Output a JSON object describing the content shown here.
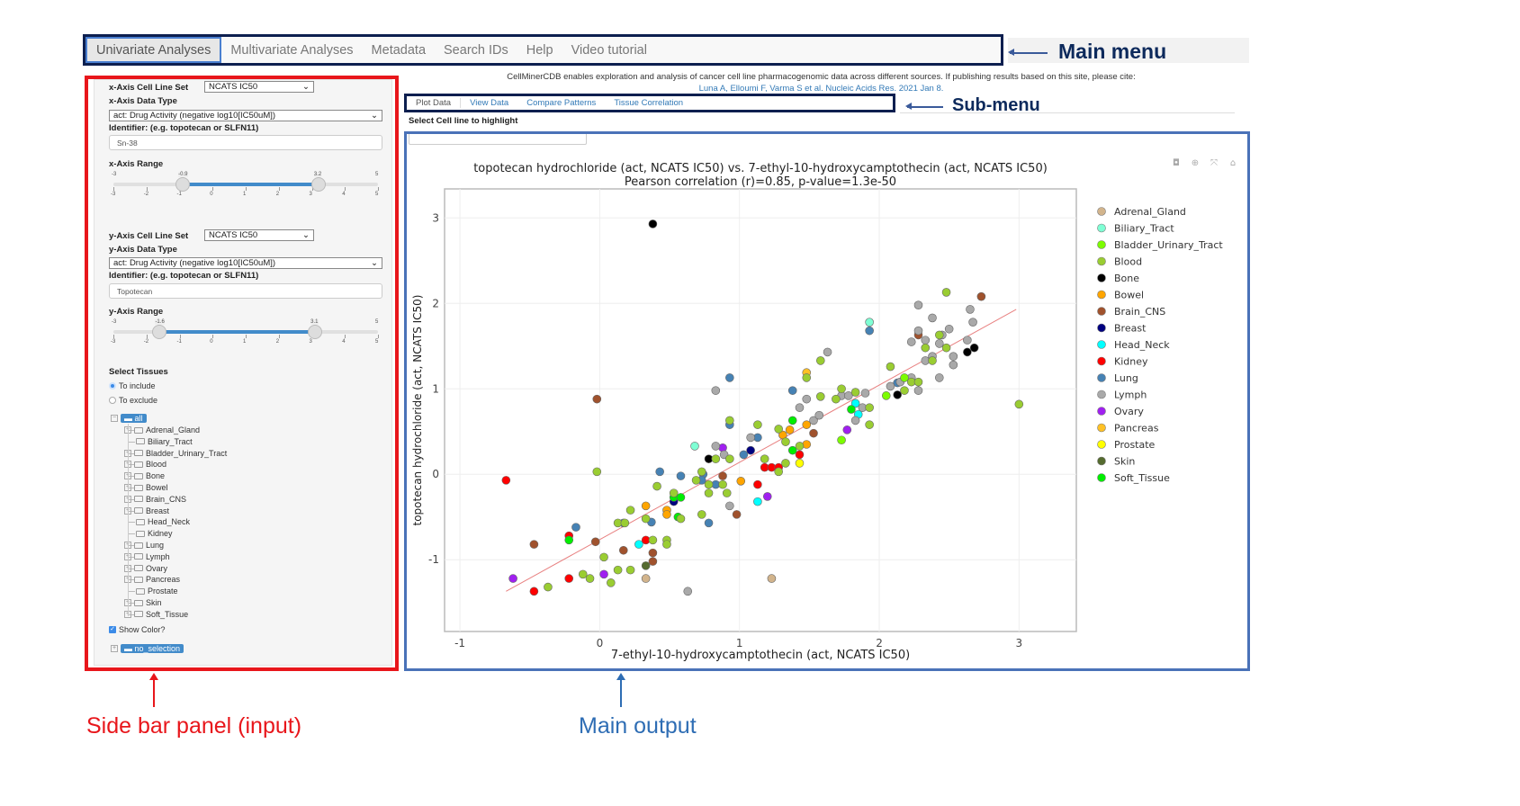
{
  "main_menu": {
    "tabs": [
      "Univariate Analyses",
      "Multivariate Analyses",
      "Metadata",
      "Search IDs",
      "Help",
      "Video tutorial"
    ],
    "active": "Univariate Analyses"
  },
  "annotations": {
    "main_menu": "Main menu",
    "sub_menu": "Sub-menu",
    "sidebar": "Side bar panel (input)",
    "main_output": "Main output",
    "colors": {
      "main_menu": "#0d1f4f",
      "sidebar": "#e8161b",
      "main_output": "#4a72b8",
      "sidebar_label": "#e8161b",
      "output_label": "#2e6db4"
    }
  },
  "intro": {
    "text": "CellMinerCDB enables exploration and analysis of cancer cell line pharmacogenomic data across different sources. If publishing results based on this site, please cite:",
    "citation": "Luna A, Elloumi F, Varma S et al. Nucleic Acids Res. 2021 Jan 8."
  },
  "sidebar": {
    "x_cell_line_set_label": "x-Axis Cell Line Set",
    "x_cell_line_set": "NCATS IC50",
    "x_data_type_label": "x-Axis Data Type",
    "x_data_type": "act: Drug Activity (negative log10[IC50uM])",
    "x_identifier_label": "Identifier: (e.g. topotecan or SLFN11)",
    "x_identifier": "Sn-38",
    "x_range_label": "x-Axis Range",
    "x_range": {
      "min": -3,
      "max": 5,
      "low": -0.9,
      "high": 3.2,
      "ticks": [
        "-3",
        "-2",
        "-1",
        "0",
        "1",
        "2",
        "3",
        "4",
        "5"
      ],
      "min_label": "-3",
      "max_label": "5",
      "low_label": "-0.9",
      "high_label": "3.2"
    },
    "y_cell_line_set_label": "y-Axis Cell Line Set",
    "y_cell_line_set": "NCATS IC50",
    "y_data_type_label": "y-Axis Data Type",
    "y_data_type": "act: Drug Activity (negative log10[IC50uM])",
    "y_identifier_label": "Identifier: (e.g. topotecan or SLFN11)",
    "y_identifier": "Topotecan",
    "y_range_label": "y-Axis Range",
    "y_range": {
      "min": -3,
      "max": 5,
      "low": -1.6,
      "high": 3.1,
      "ticks": [
        "-3",
        "-2",
        "-1",
        "0",
        "1",
        "2",
        "3",
        "4",
        "5"
      ],
      "min_label": "-3",
      "max_label": "5",
      "low_label": "-1.6",
      "high_label": "3.1"
    },
    "select_tissues_label": "Select Tissues",
    "include_label": "To include",
    "exclude_label": "To exclude",
    "include_selected": true,
    "tree_root": "all",
    "tree_items": [
      {
        "label": "Adrenal_Gland",
        "expandable": true
      },
      {
        "label": "Biliary_Tract",
        "expandable": false
      },
      {
        "label": "Bladder_Urinary_Tract",
        "expandable": true
      },
      {
        "label": "Blood",
        "expandable": true
      },
      {
        "label": "Bone",
        "expandable": true
      },
      {
        "label": "Bowel",
        "expandable": true
      },
      {
        "label": "Brain_CNS",
        "expandable": true
      },
      {
        "label": "Breast",
        "expandable": true
      },
      {
        "label": "Head_Neck",
        "expandable": false
      },
      {
        "label": "Kidney",
        "expandable": false
      },
      {
        "label": "Lung",
        "expandable": true
      },
      {
        "label": "Lymph",
        "expandable": true
      },
      {
        "label": "Ovary",
        "expandable": true
      },
      {
        "label": "Pancreas",
        "expandable": true
      },
      {
        "label": "Prostate",
        "expandable": false
      },
      {
        "label": "Skin",
        "expandable": true
      },
      {
        "label": "Soft_Tissue",
        "expandable": true
      }
    ],
    "show_color_label": "Show Color?",
    "show_color": true,
    "no_selection": "no_selection"
  },
  "sub_menu": {
    "tabs": [
      "Plot Data",
      "View Data",
      "Compare Patterns",
      "Tissue Correlation"
    ],
    "active": "Plot Data",
    "highlight_label": "Select Cell line to highlight",
    "highlight_value": ""
  },
  "chart_data": {
    "type": "scatter",
    "title": "topotecan hydrochloride (act, NCATS IC50) vs. 7-ethyl-10-hydroxycamptothecin (act, NCATS IC50)",
    "subtitle": "Pearson correlation (r)=0.85, p-value=1.3e-50",
    "xlabel": "7-ethyl-10-hydroxycamptothecin (act, NCATS IC50)",
    "ylabel": "topotecan hydrochloride (act, NCATS IC50)",
    "xlim": [
      -1.11,
      3.41
    ],
    "ylim": [
      -1.84,
      3.34
    ],
    "xticks": [
      "-1",
      "0",
      "1",
      "2",
      "3"
    ],
    "yticks": [
      "-1",
      "0",
      "1",
      "2",
      "3"
    ],
    "grid": true,
    "legend_position": "right",
    "trendline": {
      "color": "#e88080",
      "from": [
        -0.67,
        -1.37
      ],
      "to": [
        2.98,
        1.93
      ]
    },
    "legend": [
      {
        "name": "Adrenal_Gland",
        "color": "#d2b48c"
      },
      {
        "name": "Biliary_Tract",
        "color": "#7fffd4"
      },
      {
        "name": "Bladder_Urinary_Tract",
        "color": "#7cfc00"
      },
      {
        "name": "Blood",
        "color": "#9acd32"
      },
      {
        "name": "Bone",
        "color": "#000000"
      },
      {
        "name": "Bowel",
        "color": "#ffa500"
      },
      {
        "name": "Brain_CNS",
        "color": "#a0522d"
      },
      {
        "name": "Breast",
        "color": "#000080"
      },
      {
        "name": "Head_Neck",
        "color": "#00ffff"
      },
      {
        "name": "Kidney",
        "color": "#ff0000"
      },
      {
        "name": "Lung",
        "color": "#4682b4"
      },
      {
        "name": "Lymph",
        "color": "#a9a9a9"
      },
      {
        "name": "Ovary",
        "color": "#a020f0"
      },
      {
        "name": "Pancreas",
        "color": "#ffc125"
      },
      {
        "name": "Prostate",
        "color": "#ffff00"
      },
      {
        "name": "Skin",
        "color": "#556b2f"
      },
      {
        "name": "Soft_Tissue",
        "color": "#00ee00"
      }
    ],
    "points": [
      [
        0.38,
        2.93,
        "Bone"
      ],
      [
        0.78,
        0.18,
        "Bone"
      ],
      [
        2.13,
        0.93,
        "Bone"
      ],
      [
        2.63,
        1.43,
        "Bone"
      ],
      [
        2.68,
        1.48,
        "Bone"
      ],
      [
        -0.02,
        0.88,
        "Brain_CNS"
      ],
      [
        -0.47,
        -0.82,
        "Brain_CNS"
      ],
      [
        -0.03,
        -0.79,
        "Brain_CNS"
      ],
      [
        0.17,
        -0.89,
        "Brain_CNS"
      ],
      [
        0.38,
        -0.92,
        "Brain_CNS"
      ],
      [
        0.38,
        -1.02,
        "Brain_CNS"
      ],
      [
        0.88,
        -0.02,
        "Brain_CNS"
      ],
      [
        0.98,
        -0.47,
        "Brain_CNS"
      ],
      [
        1.53,
        0.48,
        "Brain_CNS"
      ],
      [
        2.28,
        1.63,
        "Brain_CNS"
      ],
      [
        2.73,
        2.08,
        "Brain_CNS"
      ],
      [
        -0.67,
        -0.07,
        "Kidney"
      ],
      [
        -0.47,
        -1.37,
        "Kidney"
      ],
      [
        -0.22,
        -1.22,
        "Kidney"
      ],
      [
        -0.22,
        -0.72,
        "Kidney"
      ],
      [
        0.33,
        -0.77,
        "Kidney"
      ],
      [
        1.13,
        -0.12,
        "Kidney"
      ],
      [
        1.18,
        0.08,
        "Kidney"
      ],
      [
        1.23,
        0.08,
        "Kidney"
      ],
      [
        1.28,
        0.08,
        "Kidney"
      ],
      [
        1.43,
        0.23,
        "Kidney"
      ],
      [
        -0.62,
        -1.22,
        "Ovary"
      ],
      [
        0.03,
        -1.17,
        "Ovary"
      ],
      [
        0.88,
        0.31,
        "Ovary"
      ],
      [
        1.2,
        -0.26,
        "Ovary"
      ],
      [
        1.77,
        0.52,
        "Ovary"
      ],
      [
        0.28,
        -0.82,
        "Head_Neck"
      ],
      [
        1.13,
        -0.32,
        "Head_Neck"
      ],
      [
        1.83,
        0.83,
        "Head_Neck"
      ],
      [
        1.85,
        0.7,
        "Head_Neck"
      ],
      [
        0.68,
        0.33,
        "Biliary_Tract"
      ],
      [
        1.93,
        1.78,
        "Biliary_Tract"
      ],
      [
        0.53,
        -0.32,
        "Breast"
      ],
      [
        1.08,
        0.28,
        "Breast"
      ],
      [
        -0.17,
        -0.62,
        "Lung"
      ],
      [
        0.17,
        -0.57,
        "Lung"
      ],
      [
        0.37,
        -0.56,
        "Lung"
      ],
      [
        0.43,
        0.03,
        "Lung"
      ],
      [
        0.58,
        -0.02,
        "Lung"
      ],
      [
        0.74,
        0.0,
        "Lung"
      ],
      [
        0.73,
        -0.07,
        "Lung"
      ],
      [
        0.83,
        -0.12,
        "Lung"
      ],
      [
        0.78,
        -0.57,
        "Lung"
      ],
      [
        0.93,
        1.13,
        "Lung"
      ],
      [
        0.93,
        0.58,
        "Lung"
      ],
      [
        1.03,
        0.23,
        "Lung"
      ],
      [
        1.13,
        0.43,
        "Lung"
      ],
      [
        1.38,
        0.98,
        "Lung"
      ],
      [
        1.93,
        1.68,
        "Lung"
      ],
      [
        2.13,
        1.07,
        "Lung"
      ],
      [
        0.63,
        -1.37,
        "Lymph"
      ],
      [
        0.83,
        0.98,
        "Lymph"
      ],
      [
        0.83,
        0.33,
        "Lymph"
      ],
      [
        0.89,
        0.23,
        "Lymph"
      ],
      [
        0.93,
        -0.37,
        "Lymph"
      ],
      [
        1.08,
        0.43,
        "Lymph"
      ],
      [
        1.43,
        0.78,
        "Lymph"
      ],
      [
        1.48,
        0.88,
        "Lymph"
      ],
      [
        1.53,
        0.63,
        "Lymph"
      ],
      [
        1.57,
        0.69,
        "Lymph"
      ],
      [
        1.63,
        1.43,
        "Lymph"
      ],
      [
        1.73,
        0.92,
        "Lymph"
      ],
      [
        1.78,
        0.92,
        "Lymph"
      ],
      [
        1.9,
        0.95,
        "Lymph"
      ],
      [
        1.83,
        0.63,
        "Lymph"
      ],
      [
        1.88,
        0.78,
        "Lymph"
      ],
      [
        2.08,
        1.03,
        "Lymph"
      ],
      [
        2.15,
        1.08,
        "Lymph"
      ],
      [
        2.23,
        1.13,
        "Lymph"
      ],
      [
        2.28,
        0.98,
        "Lymph"
      ],
      [
        2.23,
        1.55,
        "Lymph"
      ],
      [
        2.28,
        1.98,
        "Lymph"
      ],
      [
        2.28,
        1.68,
        "Lymph"
      ],
      [
        2.33,
        1.57,
        "Lymph"
      ],
      [
        2.38,
        1.83,
        "Lymph"
      ],
      [
        2.33,
        1.33,
        "Lymph"
      ],
      [
        2.38,
        1.38,
        "Lymph"
      ],
      [
        2.43,
        1.13,
        "Lymph"
      ],
      [
        2.43,
        1.53,
        "Lymph"
      ],
      [
        2.45,
        1.63,
        "Lymph"
      ],
      [
        2.5,
        1.7,
        "Lymph"
      ],
      [
        2.53,
        1.38,
        "Lymph"
      ],
      [
        2.53,
        1.28,
        "Lymph"
      ],
      [
        2.63,
        1.57,
        "Lymph"
      ],
      [
        2.65,
        1.93,
        "Lymph"
      ],
      [
        2.67,
        1.78,
        "Lymph"
      ],
      [
        0.33,
        -1.22,
        "Adrenal_Gland"
      ],
      [
        1.23,
        -1.22,
        "Adrenal_Gland"
      ],
      [
        0.33,
        -0.37,
        "Bowel"
      ],
      [
        0.48,
        -0.42,
        "Bowel"
      ],
      [
        0.48,
        -0.47,
        "Bowel"
      ],
      [
        1.01,
        -0.08,
        "Bowel"
      ],
      [
        1.31,
        0.46,
        "Bowel"
      ],
      [
        1.36,
        0.52,
        "Bowel"
      ],
      [
        1.48,
        0.58,
        "Bowel"
      ],
      [
        1.48,
        0.35,
        "Bowel"
      ],
      [
        1.48,
        1.19,
        "Pancreas"
      ],
      [
        1.43,
        0.13,
        "Prostate"
      ],
      [
        -0.22,
        -0.77,
        "Soft_Tissue"
      ],
      [
        0.53,
        -0.27,
        "Soft_Tissue"
      ],
      [
        0.58,
        -0.27,
        "Soft_Tissue"
      ],
      [
        0.56,
        -0.5,
        "Soft_Tissue"
      ],
      [
        1.38,
        0.63,
        "Soft_Tissue"
      ],
      [
        1.38,
        0.28,
        "Soft_Tissue"
      ],
      [
        1.8,
        0.76,
        "Soft_Tissue"
      ],
      [
        1.73,
        0.4,
        "Bladder_Urinary_Tract"
      ],
      [
        2.05,
        0.92,
        "Bladder_Urinary_Tract"
      ],
      [
        2.18,
        1.13,
        "Bladder_Urinary_Tract"
      ],
      [
        0.33,
        -1.07,
        "Skin"
      ],
      [
        -0.37,
        -1.32,
        "Blood"
      ],
      [
        -0.12,
        -1.17,
        "Blood"
      ],
      [
        -0.07,
        -1.22,
        "Blood"
      ],
      [
        -0.02,
        0.03,
        "Blood"
      ],
      [
        0.03,
        -0.97,
        "Blood"
      ],
      [
        0.08,
        -1.27,
        "Blood"
      ],
      [
        0.13,
        -1.12,
        "Blood"
      ],
      [
        0.13,
        -0.57,
        "Blood"
      ],
      [
        0.18,
        -0.57,
        "Blood"
      ],
      [
        0.22,
        -0.42,
        "Blood"
      ],
      [
        0.22,
        -1.12,
        "Blood"
      ],
      [
        0.33,
        -0.52,
        "Blood"
      ],
      [
        0.38,
        -0.77,
        "Blood"
      ],
      [
        0.41,
        -0.14,
        "Blood"
      ],
      [
        0.48,
        -0.77,
        "Blood"
      ],
      [
        0.48,
        -0.82,
        "Blood"
      ],
      [
        0.53,
        -0.22,
        "Blood"
      ],
      [
        0.58,
        -0.52,
        "Blood"
      ],
      [
        0.69,
        -0.07,
        "Blood"
      ],
      [
        0.73,
        0.03,
        "Blood"
      ],
      [
        0.73,
        -0.47,
        "Blood"
      ],
      [
        0.78,
        -0.12,
        "Blood"
      ],
      [
        0.78,
        -0.22,
        "Blood"
      ],
      [
        0.83,
        0.18,
        "Blood"
      ],
      [
        0.88,
        -0.12,
        "Blood"
      ],
      [
        0.91,
        -0.22,
        "Blood"
      ],
      [
        0.93,
        0.63,
        "Blood"
      ],
      [
        0.93,
        0.18,
        "Blood"
      ],
      [
        1.13,
        0.58,
        "Blood"
      ],
      [
        1.18,
        0.18,
        "Blood"
      ],
      [
        1.28,
        0.53,
        "Blood"
      ],
      [
        1.28,
        0.03,
        "Blood"
      ],
      [
        1.33,
        0.38,
        "Blood"
      ],
      [
        1.33,
        0.13,
        "Blood"
      ],
      [
        1.43,
        0.33,
        "Blood"
      ],
      [
        1.48,
        1.13,
        "Blood"
      ],
      [
        1.58,
        1.33,
        "Blood"
      ],
      [
        1.58,
        0.91,
        "Blood"
      ],
      [
        1.69,
        0.88,
        "Blood"
      ],
      [
        1.73,
        1.0,
        "Blood"
      ],
      [
        1.83,
        0.96,
        "Blood"
      ],
      [
        1.93,
        0.78,
        "Blood"
      ],
      [
        1.93,
        0.58,
        "Blood"
      ],
      [
        2.08,
        1.26,
        "Blood"
      ],
      [
        2.18,
        0.98,
        "Blood"
      ],
      [
        2.23,
        1.08,
        "Blood"
      ],
      [
        2.28,
        1.08,
        "Blood"
      ],
      [
        2.33,
        1.48,
        "Blood"
      ],
      [
        2.38,
        1.33,
        "Blood"
      ],
      [
        2.43,
        1.63,
        "Blood"
      ],
      [
        2.48,
        1.48,
        "Blood"
      ],
      [
        2.48,
        2.13,
        "Blood"
      ],
      [
        3.0,
        0.82,
        "Blood"
      ]
    ]
  },
  "modebar": [
    "camera-icon",
    "zoom-icon",
    "autoscale-icon",
    "reset-icon"
  ]
}
